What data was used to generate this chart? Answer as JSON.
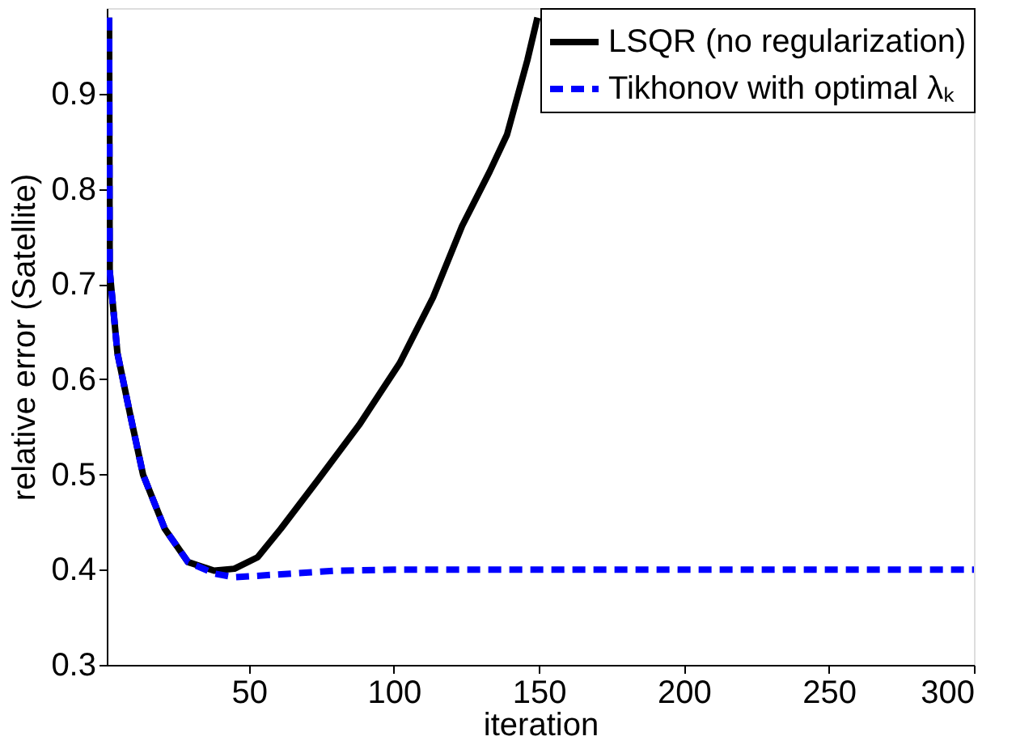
{
  "chart_data": {
    "type": "line",
    "xlabel": "iteration",
    "ylabel": "relative error (Satellite)",
    "xlim": [
      1,
      300
    ],
    "ylim": [
      0.3,
      0.99
    ],
    "xticks": [
      50,
      100,
      150,
      200,
      250,
      300
    ],
    "yticks": [
      0.3,
      0.4,
      0.5,
      0.6,
      0.7,
      0.8,
      0.9
    ],
    "grid": false,
    "legend": "top right",
    "marker": "none",
    "series": [
      {
        "name": "LSQR (no regularization)",
        "color": "#000000",
        "line_style": "solid",
        "x": [
          1.8,
          2,
          4.7,
          9,
          13.5,
          21,
          29,
          38,
          45,
          53,
          61,
          74,
          88,
          102,
          113.5,
          123.5,
          133,
          139,
          146,
          149.5
        ],
        "values": [
          0.98,
          0.714,
          0.627,
          0.564,
          0.5,
          0.443,
          0.408,
          0.399,
          0.401,
          0.413,
          0.443,
          0.495,
          0.552,
          0.617,
          0.686,
          0.761,
          0.818,
          0.857,
          0.935,
          0.98
        ]
      },
      {
        "name": "Tikhonov with optimal λₖ",
        "color": "#0000ff",
        "line_style": "dashed",
        "x": [
          1.8,
          2,
          4.7,
          9,
          13.5,
          21,
          29,
          38,
          45,
          60,
          80,
          100,
          150,
          200,
          250,
          300
        ],
        "values": [
          0.98,
          0.714,
          0.627,
          0.564,
          0.5,
          0.443,
          0.408,
          0.396,
          0.392,
          0.395,
          0.399,
          0.4,
          0.4,
          0.4,
          0.4,
          0.4
        ]
      }
    ]
  }
}
